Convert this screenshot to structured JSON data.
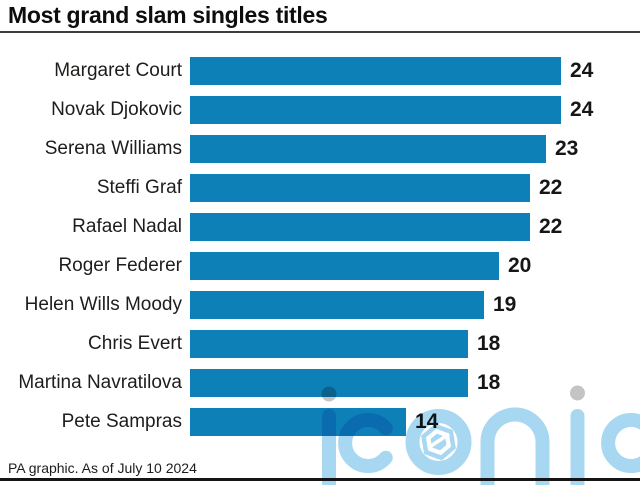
{
  "title": "Most grand slam singles titles",
  "footer": "PA graphic. As of July 10 2024",
  "watermark": {
    "text": "iconic"
  },
  "colors": {
    "bar": "#0e80b8",
    "title_rule": "#3d3d3d",
    "bottom_rule": "#141414",
    "watermark_blue": "#a8d8f1",
    "watermark_gray": "#c4c4c4",
    "text": "#1d1d1b"
  },
  "chart_data": {
    "type": "bar",
    "orientation": "horizontal",
    "title": "Most grand slam singles titles",
    "categories": [
      "Margaret Court",
      "Novak Djokovic",
      "Serena Williams",
      "Steffi Graf",
      "Rafael Nadal",
      "Roger Federer",
      "Helen Wills Moody",
      "Chris Evert",
      "Martina Navratilova",
      "Pete Sampras"
    ],
    "values": [
      24,
      24,
      23,
      22,
      22,
      20,
      19,
      18,
      18,
      14
    ],
    "xlim": [
      0,
      24
    ],
    "value_labels_shown": true,
    "grid": false,
    "legend": false,
    "source_note": "PA graphic. As of July 10 2024"
  }
}
